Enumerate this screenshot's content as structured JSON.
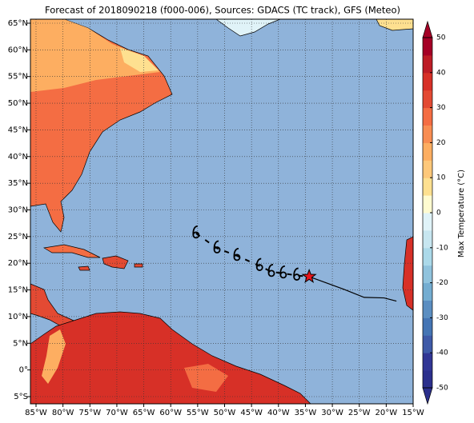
{
  "map": {
    "type": "map",
    "title": "Forecast of 2018090218 (f000-006), Sources: GDACS (TC track), GFS (Meteo)",
    "xlim": [
      -86.04,
      -15
    ],
    "ylim": [
      -6.35,
      65.75
    ],
    "xticks": [
      {
        "value": -85,
        "label": "85°W"
      },
      {
        "value": -80,
        "label": "80°W"
      },
      {
        "value": -75,
        "label": "75°W"
      },
      {
        "value": -70,
        "label": "70°W"
      },
      {
        "value": -65,
        "label": "65°W"
      },
      {
        "value": -60,
        "label": "60°W"
      },
      {
        "value": -55,
        "label": "55°W"
      },
      {
        "value": -50,
        "label": "50°W"
      },
      {
        "value": -45,
        "label": "45°W"
      },
      {
        "value": -40,
        "label": "40°W"
      },
      {
        "value": -35,
        "label": "35°W"
      },
      {
        "value": -30,
        "label": "30°W"
      },
      {
        "value": -25,
        "label": "25°W"
      },
      {
        "value": -20,
        "label": "20°W"
      },
      {
        "value": -15,
        "label": "15°W"
      }
    ],
    "yticks": [
      {
        "value": -5,
        "label": "5°S"
      },
      {
        "value": 0,
        "label": "0°"
      },
      {
        "value": 5,
        "label": "5°N"
      },
      {
        "value": 10,
        "label": "10°N"
      },
      {
        "value": 15,
        "label": "15°N"
      },
      {
        "value": 20,
        "label": "20°N"
      },
      {
        "value": 25,
        "label": "25°N"
      },
      {
        "value": 30,
        "label": "30°N"
      },
      {
        "value": 35,
        "label": "35°N"
      },
      {
        "value": 40,
        "label": "40°N"
      },
      {
        "value": 45,
        "label": "45°N"
      },
      {
        "value": 50,
        "label": "50°N"
      },
      {
        "value": 55,
        "label": "55°N"
      },
      {
        "value": 60,
        "label": "60°N"
      },
      {
        "value": 65,
        "label": "65°N"
      }
    ],
    "grid": true,
    "track": {
      "lon": [
        -55.3,
        -51.4,
        -47.7,
        -43.5,
        -41.3,
        -39.1,
        -36.6
      ],
      "lat": [
        25.6,
        22.8,
        21.4,
        19.5,
        18.4,
        18.1,
        17.7
      ]
    },
    "current": {
      "lon": -34.3,
      "lat": 17.5
    },
    "forecast": {
      "lon": [
        -34.3,
        -27.8,
        -24.1,
        -20.4,
        -18.1
      ],
      "lat": [
        17.5,
        15.1,
        13.6,
        13.5,
        12.9
      ]
    },
    "colorbar": {
      "label": "Max Temperature (°C)",
      "lim": [
        -50,
        50
      ],
      "ticks": [
        -50,
        -40,
        -30,
        -20,
        -10,
        0,
        10,
        20,
        30,
        40,
        50
      ],
      "colors": [
        "#2b2f8c",
        "#313695",
        "#3f5aa8",
        "#4575b4",
        "#5b8ec1",
        "#74add1",
        "#90c3dd",
        "#abd9e9",
        "#c7e6f0",
        "#e0f3f8",
        "#fffbd0",
        "#fee090",
        "#fec87a",
        "#fdae61",
        "#f88d52",
        "#f46d43",
        "#e34a33",
        "#d73027",
        "#bd1c26",
        "#a50026"
      ]
    }
  }
}
